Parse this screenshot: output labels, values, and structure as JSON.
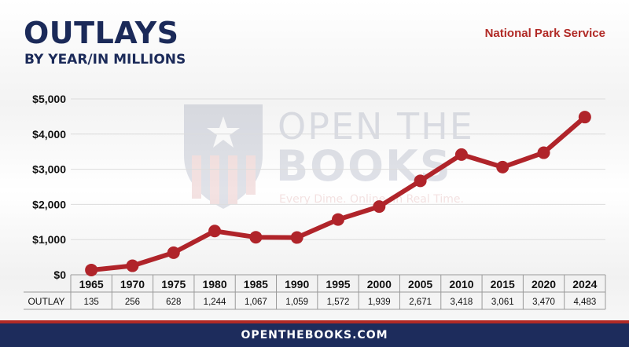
{
  "header": {
    "title": "OUTLAYS",
    "subtitle": "BY YEAR/IN MILLIONS",
    "agency": "National Park Service"
  },
  "watermark": {
    "line1": "OPEN THE",
    "line2": "BOOKS",
    "tagline": "Every Dime. Online. In Real Time."
  },
  "footer": {
    "text": "OPENTHEBOOKS.COM"
  },
  "colors": {
    "navy": "#1b2a59",
    "accent": "#b12a26",
    "line": "#b0242a"
  },
  "chart_data": {
    "type": "line",
    "title": "",
    "xlabel": "",
    "ylabel": "",
    "categories": [
      "1965",
      "1970",
      "1975",
      "1980",
      "1985",
      "1990",
      "1995",
      "2000",
      "2005",
      "2010",
      "2015",
      "2020",
      "2024"
    ],
    "series": [
      {
        "values": [
          135,
          256,
          628,
          1244,
          1067,
          1059,
          1572,
          1939,
          2671,
          3418,
          3061,
          3470,
          4483
        ]
      }
    ],
    "yticks": [
      "$0",
      "$1,000",
      "$2,000",
      "$3,000",
      "$4,000",
      "$5,000"
    ],
    "ylim": [
      0,
      5000
    ],
    "grid": true,
    "table": {
      "row_label": "OUTLAY",
      "values": [
        "135",
        "256",
        "628",
        "1,244",
        "1,067",
        "1,059",
        "1,572",
        "1,939",
        "2,671",
        "3,418",
        "3,061",
        "3,470",
        "4,483"
      ]
    }
  }
}
